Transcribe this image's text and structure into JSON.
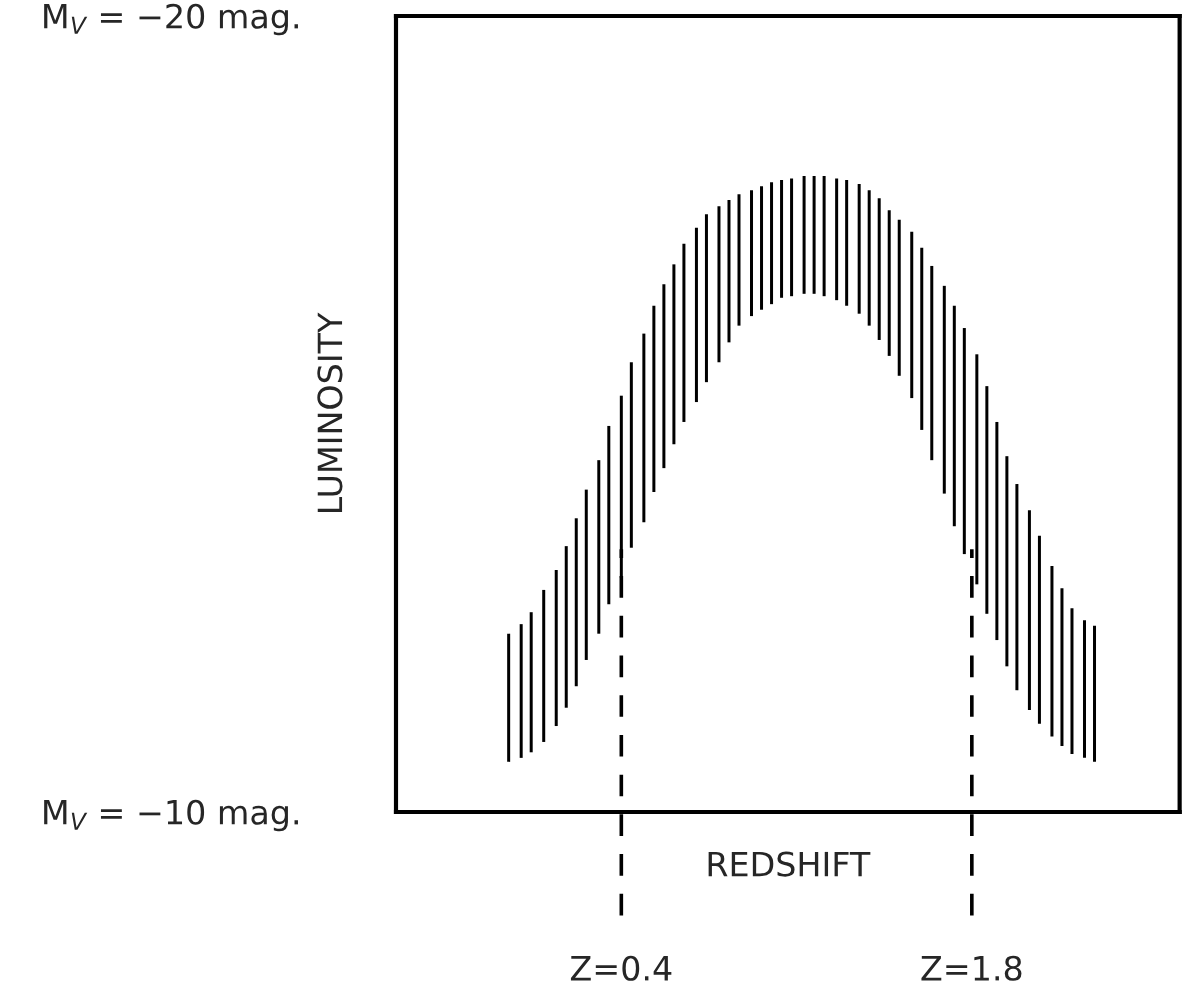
{
  "chart_data": {
    "type": "bar",
    "xlabel": "REDSHIFT",
    "ylabel": "LUMINOSITY",
    "x": [
      -0.05,
      0.0,
      0.04,
      0.09,
      0.14,
      0.18,
      0.22,
      0.26,
      0.31,
      0.35,
      0.4,
      0.44,
      0.49,
      0.53,
      0.57,
      0.61,
      0.65,
      0.7,
      0.74,
      0.79,
      0.83,
      0.87,
      0.92,
      0.96,
      1.0,
      1.04,
      1.08,
      1.13,
      1.17,
      1.21,
      1.26,
      1.3,
      1.35,
      1.39,
      1.43,
      1.47,
      1.51,
      1.56,
      1.6,
      1.64,
      1.69,
      1.73,
      1.77,
      1.82,
      1.86,
      1.9,
      1.94,
      1.98,
      2.03,
      2.07,
      2.12,
      2.16,
      2.2,
      2.25,
      2.29
    ],
    "base": [
      -10.63,
      -10.68,
      -10.75,
      -10.88,
      -11.08,
      -11.31,
      -11.58,
      -11.91,
      -12.24,
      -12.61,
      -12.94,
      -13.32,
      -13.64,
      -14.02,
      -14.32,
      -14.62,
      -14.9,
      -15.15,
      -15.4,
      -15.65,
      -15.9,
      -16.11,
      -16.23,
      -16.31,
      -16.38,
      -16.46,
      -16.48,
      -16.51,
      -16.51,
      -16.48,
      -16.43,
      -16.36,
      -16.26,
      -16.11,
      -15.93,
      -15.73,
      -15.48,
      -15.2,
      -14.8,
      -14.42,
      -14.0,
      -13.59,
      -13.24,
      -12.86,
      -12.49,
      -12.16,
      -11.83,
      -11.53,
      -11.28,
      -11.11,
      -10.95,
      -10.83,
      -10.73,
      -10.68,
      -10.63
    ],
    "values": [
      -1.61,
      -1.68,
      -1.76,
      -1.91,
      -1.96,
      -2.03,
      -2.11,
      -2.14,
      -2.18,
      -2.24,
      -2.29,
      -2.33,
      -2.37,
      -2.34,
      -2.31,
      -2.26,
      -2.24,
      -2.19,
      -2.11,
      -1.96,
      -1.79,
      -1.65,
      -1.58,
      -1.55,
      -1.53,
      -1.48,
      -1.48,
      -1.48,
      -1.48,
      -1.51,
      -1.53,
      -1.58,
      -1.63,
      -1.7,
      -1.78,
      -1.83,
      -1.96,
      -2.09,
      -2.29,
      -2.44,
      -2.61,
      -2.77,
      -2.84,
      -2.89,
      -2.86,
      -2.74,
      -2.64,
      -2.59,
      -2.51,
      -2.36,
      -2.14,
      -1.98,
      -1.83,
      -1.73,
      -1.71
    ],
    "color": "#000000",
    "xlim": [
      -0.5,
      2.63
    ],
    "ylim": [
      -10,
      -20
    ],
    "yticks": [
      {
        "value": -20,
        "label": "M$_{V}$ = −20 mag."
      },
      {
        "value": -10,
        "label": "M$_{V}$ = −10 mag."
      }
    ],
    "tick_labels": "y",
    "ref_lines": [
      {
        "axis": "x",
        "value": 0.4,
        "label": "Z=0.4",
        "color": "#000000",
        "line_style": "dashed"
      },
      {
        "axis": "x",
        "value": 1.8,
        "label": "Z=1.8",
        "color": "#000000",
        "line_style": "dashed"
      }
    ]
  }
}
